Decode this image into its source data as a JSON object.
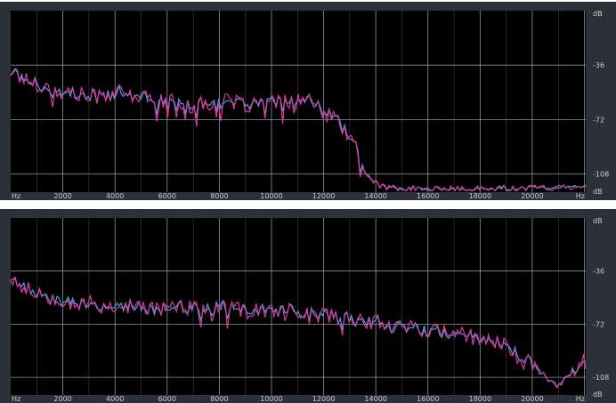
{
  "chart_data": [
    {
      "type": "line",
      "x_unit": "Hz",
      "y_unit": "dB",
      "x_ticks": [
        "2000",
        "4000",
        "6000",
        "8000",
        "10000",
        "12000",
        "14000",
        "16000",
        "18000",
        "20000"
      ],
      "y_ticks": [
        "-36",
        "-72",
        "-108"
      ],
      "xlim": [
        0,
        22050
      ],
      "ylim": [
        -120,
        0
      ],
      "grid": true,
      "colors": {
        "series_a": "#e0389a",
        "series_b": "#39a6dd",
        "grid": "#a9aeb4",
        "background": "#000000"
      },
      "series": [
        {
          "x": [
            0,
            500,
            1000,
            1500,
            2000,
            2500,
            3000,
            3500,
            4000,
            4500,
            5000,
            5500,
            6000,
            6500,
            7000,
            7500,
            8000,
            8500,
            9000,
            9500,
            10000,
            10500,
            11000,
            11500,
            12000,
            12500,
            13000,
            13200,
            13400,
            13600,
            13800,
            14000,
            14500,
            15000,
            15500,
            16000,
            16500,
            17000,
            17500,
            18000,
            18500,
            19000,
            19500,
            20000,
            20500,
            21000,
            21500,
            22050
          ],
          "y": [
            -40,
            -45,
            -48,
            -52,
            -53,
            -55,
            -57,
            -56,
            -54,
            -56,
            -57,
            -59,
            -60,
            -61,
            -63,
            -62,
            -60,
            -61,
            -62,
            -62,
            -61,
            -61,
            -59,
            -60,
            -68,
            -73,
            -82,
            -90,
            -100,
            -107,
            -111,
            -114,
            -117,
            -118,
            -118,
            -118,
            -118,
            -118,
            -118,
            -118,
            -118,
            -117,
            -118,
            -117,
            -117,
            -117,
            -116,
            -115
          ]
        }
      ]
    },
    {
      "type": "line",
      "x_unit": "Hz",
      "y_unit": "dB",
      "x_ticks": [
        "2000",
        "4000",
        "6000",
        "8000",
        "10000",
        "12000",
        "14000",
        "16000",
        "18000",
        "20000"
      ],
      "y_ticks": [
        "-36",
        "-72",
        "-108"
      ],
      "xlim": [
        0,
        22050
      ],
      "ylim": [
        -120,
        0
      ],
      "grid": true,
      "colors": {
        "series_a": "#e0389a",
        "series_b": "#39a6dd",
        "grid": "#a9aeb4",
        "background": "#000000"
      },
      "series": [
        {
          "x": [
            0,
            500,
            1000,
            1500,
            2000,
            2500,
            3000,
            3500,
            4000,
            4500,
            5000,
            5500,
            6000,
            6500,
            7000,
            7500,
            8000,
            8500,
            9000,
            9500,
            10000,
            10500,
            11000,
            11500,
            12000,
            12500,
            13000,
            13500,
            14000,
            14500,
            15000,
            15500,
            16000,
            16500,
            17000,
            17500,
            18000,
            18500,
            19000,
            19500,
            20000,
            20500,
            21000,
            21500,
            22050
          ],
          "y": [
            -40,
            -46,
            -50,
            -53,
            -55,
            -58,
            -58,
            -60,
            -60,
            -60,
            -61,
            -61,
            -61,
            -60,
            -62,
            -61,
            -61,
            -62,
            -63,
            -63,
            -63,
            -63,
            -64,
            -65,
            -66,
            -67,
            -68,
            -69,
            -71,
            -72,
            -73,
            -74,
            -76,
            -77,
            -78,
            -80,
            -82,
            -84,
            -86,
            -92,
            -98,
            -108,
            -114,
            -105,
            -96
          ]
        }
      ]
    }
  ]
}
